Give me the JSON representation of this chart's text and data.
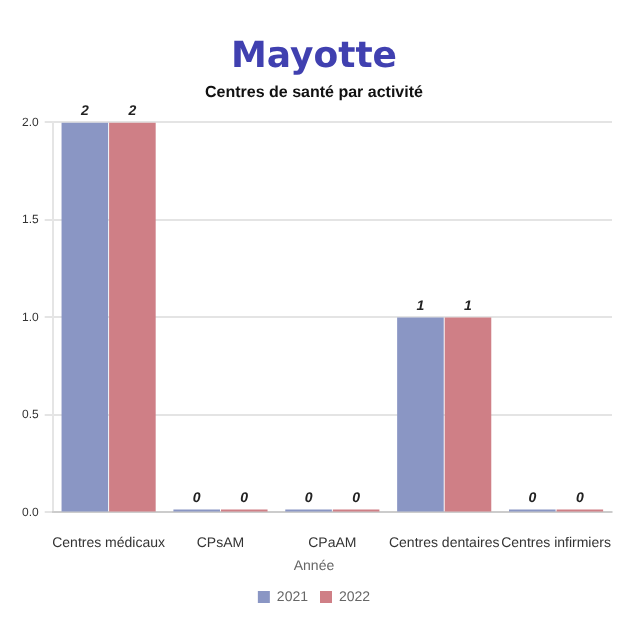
{
  "chart_data": {
    "type": "bar",
    "title": "Mayotte",
    "subtitle": "Centres de santé par activité",
    "categories": [
      "Centres médicaux",
      "CPsAM",
      "CPaAM",
      "Centres dentaires",
      "Centres infirmiers"
    ],
    "series": [
      {
        "name": "2021",
        "color": "#8a96c4",
        "values": [
          2,
          0,
          0,
          1,
          0
        ]
      },
      {
        "name": "2022",
        "color": "#cf7f86",
        "values": [
          2,
          0,
          0,
          1,
          0
        ]
      }
    ],
    "ylim": [
      0,
      2
    ],
    "yticks": [
      {
        "value": 0,
        "label": "0.0"
      },
      {
        "value": 0.5,
        "label": "0.5"
      },
      {
        "value": 1,
        "label": "1.0"
      },
      {
        "value": 1.5,
        "label": "1.5"
      },
      {
        "value": 2,
        "label": "2.0"
      }
    ],
    "grid": "y",
    "legend": "bottom",
    "legend_title": "Année",
    "data_labels": true
  }
}
